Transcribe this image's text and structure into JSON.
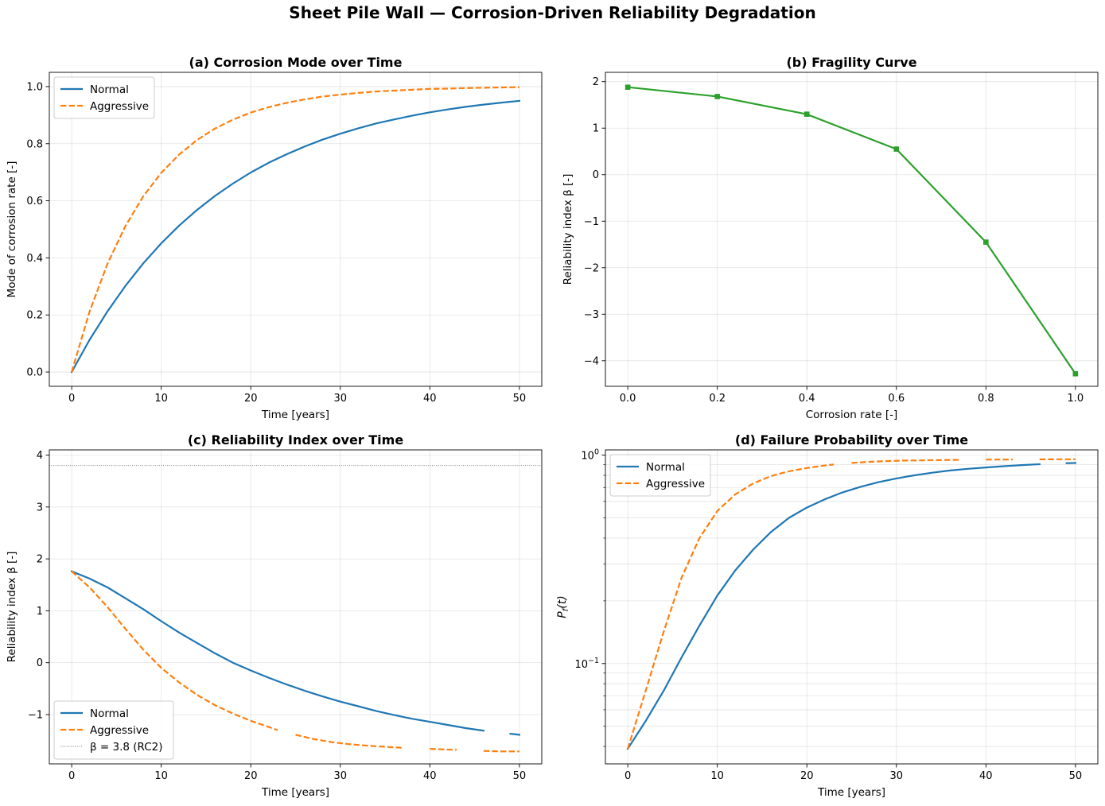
{
  "figure": {
    "title": "Sheet Pile Wall — Corrosion-Driven Reliability Degradation"
  },
  "colors": {
    "normal": "#1f77b4",
    "aggressive": "#ff7f0e",
    "fragility": "#2ca02c",
    "reference": "#808080"
  },
  "chart_data": [
    {
      "id": "a",
      "type": "line",
      "title": "(a) Corrosion Mode over Time",
      "xlabel": "Time [years]",
      "ylabel": "Mode of corrosion rate [-]",
      "xlim": [
        -2.5,
        52.5
      ],
      "ylim": [
        -0.05,
        1.05
      ],
      "xticks": [
        0,
        10,
        20,
        30,
        40,
        50
      ],
      "yticks": [
        0.0,
        0.2,
        0.4,
        0.6,
        0.8,
        1.0
      ],
      "ytick_labels": [
        "0.0",
        "0.2",
        "0.4",
        "0.6",
        "0.8",
        "1.0"
      ],
      "grid": true,
      "legend": "upper-left",
      "series": [
        {
          "name": "Normal",
          "style": "solid",
          "color": "#1f77b4",
          "x": [
            0,
            2,
            4,
            6,
            8,
            10,
            12,
            14,
            16,
            18,
            20,
            22,
            24,
            26,
            28,
            30,
            32,
            34,
            36,
            38,
            40,
            42,
            44,
            46,
            48,
            50
          ],
          "y": [
            0.0,
            0.113,
            0.213,
            0.302,
            0.381,
            0.451,
            0.513,
            0.568,
            0.617,
            0.66,
            0.699,
            0.733,
            0.763,
            0.79,
            0.814,
            0.835,
            0.854,
            0.871,
            0.885,
            0.898,
            0.91,
            0.92,
            0.929,
            0.937,
            0.944,
            0.95
          ]
        },
        {
          "name": "Aggressive",
          "style": "dashed",
          "color": "#ff7f0e",
          "x": [
            0,
            2,
            4,
            6,
            8,
            10,
            12,
            14,
            16,
            18,
            20,
            22,
            24,
            26,
            28,
            30,
            32,
            34,
            36,
            38,
            40,
            42,
            44,
            46,
            48,
            50
          ],
          "y": [
            0.0,
            0.212,
            0.38,
            0.512,
            0.616,
            0.698,
            0.762,
            0.813,
            0.853,
            0.884,
            0.909,
            0.928,
            0.943,
            0.955,
            0.965,
            0.972,
            0.978,
            0.983,
            0.986,
            0.989,
            0.992,
            0.993,
            0.995,
            0.996,
            0.997,
            0.998
          ]
        }
      ]
    },
    {
      "id": "b",
      "type": "line",
      "title": "(b) Fragility Curve",
      "xlabel": "Corrosion rate [-]",
      "ylabel": "Reliability index β [-]",
      "xlim": [
        -0.05,
        1.05
      ],
      "ylim": [
        -4.55,
        2.2
      ],
      "xticks": [
        0.0,
        0.2,
        0.4,
        0.6,
        0.8,
        1.0
      ],
      "xtick_labels": [
        "0.0",
        "0.2",
        "0.4",
        "0.6",
        "0.8",
        "1.0"
      ],
      "yticks": [
        -4,
        -3,
        -2,
        -1,
        0,
        1,
        2
      ],
      "ytick_labels": [
        "−4",
        "−3",
        "−2",
        "−1",
        "0",
        "1",
        "2"
      ],
      "grid": true,
      "markers": "square",
      "series": [
        {
          "name": "",
          "style": "solid",
          "color": "#2ca02c",
          "x": [
            0.0,
            0.2,
            0.4,
            0.6,
            0.8,
            1.0
          ],
          "y": [
            1.88,
            1.68,
            1.3,
            0.55,
            -1.45,
            -4.28
          ]
        }
      ]
    },
    {
      "id": "c",
      "type": "line",
      "title": "(c) Reliability Index over Time",
      "xlabel": "Time [years]",
      "ylabel": "Reliability index β [-]",
      "xlim": [
        -2.5,
        52.5
      ],
      "ylim": [
        -1.95,
        4.1
      ],
      "xticks": [
        0,
        10,
        20,
        30,
        40,
        50
      ],
      "yticks": [
        -1,
        0,
        1,
        2,
        3,
        4
      ],
      "ytick_labels": [
        "−1",
        "0",
        "1",
        "2",
        "3",
        "4"
      ],
      "grid": true,
      "legend": "lower-left",
      "reference_line": {
        "y": 3.8,
        "label": "β = 3.8 (RC2)"
      },
      "series": [
        {
          "name": "Normal",
          "style": "solid",
          "color": "#1f77b4",
          "segments": [
            {
              "x": [
                0,
                2,
                4,
                6,
                8,
                10,
                12,
                14,
                16,
                18,
                20,
                22,
                24,
                26,
                28,
                30,
                32,
                34,
                36,
                38,
                40,
                42,
                44,
                46
              ],
              "y": [
                1.76,
                1.62,
                1.45,
                1.24,
                1.03,
                0.8,
                0.58,
                0.38,
                0.18,
                0.0,
                -0.15,
                -0.29,
                -0.42,
                -0.54,
                -0.65,
                -0.75,
                -0.84,
                -0.93,
                -1.01,
                -1.08,
                -1.14,
                -1.2,
                -1.26,
                -1.31
              ]
            },
            {
              "x": [
                49,
                50
              ],
              "y": [
                -1.37,
                -1.39
              ]
            }
          ]
        },
        {
          "name": "Aggressive",
          "style": "dashed",
          "color": "#ff7f0e",
          "segments": [
            {
              "x": [
                0,
                2,
                4,
                6,
                8,
                10,
                12,
                14,
                16,
                18,
                20,
                22,
                23
              ],
              "y": [
                1.76,
                1.45,
                1.07,
                0.65,
                0.25,
                -0.1,
                -0.38,
                -0.62,
                -0.82,
                -0.98,
                -1.12,
                -1.24,
                -1.3
              ]
            },
            {
              "x": [
                25,
                27,
                29,
                31,
                33,
                35,
                37
              ],
              "y": [
                -1.39,
                -1.47,
                -1.53,
                -1.57,
                -1.6,
                -1.62,
                -1.64
              ]
            },
            {
              "x": [
                40,
                43
              ],
              "y": [
                -1.66,
                -1.68
              ]
            },
            {
              "x": [
                46,
                48,
                50
              ],
              "y": [
                -1.7,
                -1.71,
                -1.71
              ]
            }
          ]
        }
      ]
    },
    {
      "id": "d",
      "type": "line",
      "title": "(d) Failure Probability over Time",
      "xlabel": "Time [years]",
      "ylabel": "P_f(t)",
      "xlim": [
        -2.5,
        52.5
      ],
      "ylim": [
        0.033,
        1.06
      ],
      "yscale": "log",
      "xticks": [
        0,
        10,
        20,
        30,
        40,
        50
      ],
      "yticks_major": [
        0.1,
        1.0
      ],
      "ytick_labels": [
        {
          "base": "10",
          "exp": "−1"
        },
        {
          "base": "10",
          "exp": "0"
        }
      ],
      "yticks_minor": [
        0.04,
        0.05,
        0.06,
        0.07,
        0.08,
        0.09,
        0.2,
        0.3,
        0.4,
        0.5,
        0.6,
        0.7,
        0.8,
        0.9
      ],
      "grid": true,
      "legend": "upper-left",
      "series": [
        {
          "name": "Normal",
          "style": "solid",
          "color": "#1f77b4",
          "segments": [
            {
              "x": [
                0,
                2,
                4,
                6,
                8,
                10,
                12,
                14,
                16,
                18,
                20,
                22,
                24,
                26,
                28,
                30,
                32,
                34,
                36,
                38,
                40,
                42,
                44,
                46
              ],
              "y": [
                0.039,
                0.053,
                0.074,
                0.107,
                0.152,
                0.212,
                0.28,
                0.352,
                0.428,
                0.5,
                0.56,
                0.614,
                0.663,
                0.705,
                0.742,
                0.773,
                0.8,
                0.824,
                0.844,
                0.86,
                0.873,
                0.885,
                0.896,
                0.905
              ]
            },
            {
              "x": [
                49,
                50
              ],
              "y": [
                0.915,
                0.918
              ]
            }
          ]
        },
        {
          "name": "Aggressive",
          "style": "dashed",
          "color": "#ff7f0e",
          "segments": [
            {
              "x": [
                0,
                2,
                4,
                6,
                8,
                10,
                12,
                14,
                16,
                18,
                20,
                22,
                23
              ],
              "y": [
                0.039,
                0.074,
                0.142,
                0.258,
                0.4,
                0.54,
                0.648,
                0.732,
                0.794,
                0.837,
                0.868,
                0.892,
                0.902
              ]
            },
            {
              "x": [
                25,
                27,
                29,
                31,
                33,
                35,
                37
              ],
              "y": [
                0.918,
                0.929,
                0.937,
                0.942,
                0.945,
                0.947,
                0.95
              ]
            },
            {
              "x": [
                40,
                43
              ],
              "y": [
                0.952,
                0.953
              ]
            },
            {
              "x": [
                46,
                48,
                50
              ],
              "y": [
                0.955,
                0.956,
                0.956
              ]
            }
          ]
        }
      ]
    }
  ]
}
